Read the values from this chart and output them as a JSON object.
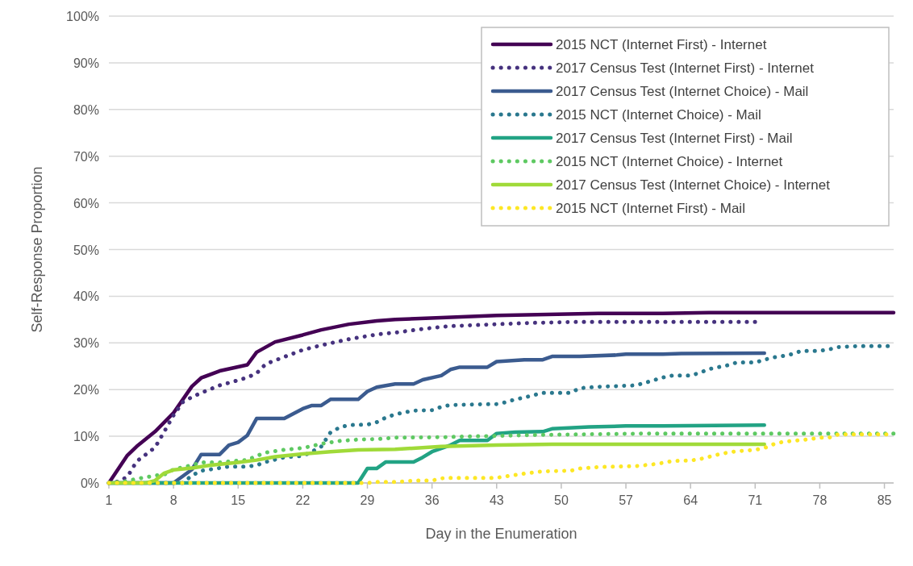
{
  "chart_data": {
    "type": "line",
    "xlabel": "Day in the Enumeration",
    "ylabel": "Self-Response Proportion",
    "xlim": [
      1,
      86
    ],
    "xticks": [
      1,
      8,
      15,
      22,
      29,
      36,
      43,
      50,
      57,
      64,
      71,
      78,
      85
    ],
    "ylim": [
      0,
      100
    ],
    "yticks": [
      {
        "value": 0,
        "label": "0%"
      },
      {
        "value": 10,
        "label": "10%"
      },
      {
        "value": 20,
        "label": "20%"
      },
      {
        "value": 30,
        "label": "30%"
      },
      {
        "value": 40,
        "label": "40%"
      },
      {
        "value": 50,
        "label": "50%"
      },
      {
        "value": 60,
        "label": "60%"
      },
      {
        "value": 70,
        "label": "70%"
      },
      {
        "value": 80,
        "label": "80%"
      },
      {
        "value": 90,
        "label": "90%"
      },
      {
        "value": 100,
        "label": "100%"
      }
    ],
    "grid": "y",
    "legend": "top right",
    "series": [
      {
        "name": "2015 NCT (Internet First) - Internet",
        "color": "#440154",
        "line_style": "solid",
        "x": [
          1,
          3,
          4,
          6,
          8,
          10,
          11,
          13,
          16,
          17,
          19,
          22,
          24,
          27,
          30,
          32,
          37,
          43,
          54,
          61,
          66,
          86
        ],
        "values": [
          0,
          5.9,
          7.8,
          11,
          15,
          20.7,
          22.5,
          24,
          25.3,
          28,
          30.2,
          31.7,
          32.8,
          34,
          34.7,
          35,
          35.4,
          35.9,
          36.3,
          36.3,
          36.5,
          36.5
        ]
      },
      {
        "name": "2017 Census Test (Internet First) - Internet",
        "color": "#46327e",
        "line_style": "dotted",
        "x": [
          1,
          2,
          3,
          4,
          5,
          6,
          7,
          8,
          9,
          10,
          11,
          13,
          15,
          16,
          17,
          18,
          20,
          22,
          24,
          27,
          30,
          32,
          35,
          38,
          43,
          47,
          52,
          60,
          71
        ],
        "values": [
          0,
          0.3,
          1.3,
          4.6,
          6.1,
          7.6,
          11,
          14.5,
          17.3,
          18.4,
          19.3,
          20.9,
          22,
          22.6,
          23.5,
          25.5,
          27,
          28.5,
          29.5,
          30.8,
          31.8,
          32.2,
          33,
          33.6,
          34,
          34.3,
          34.5,
          34.5,
          34.5
        ]
      },
      {
        "name": "2017 Census Test (Internet Choice) - Mail",
        "color": "#3b5b8f",
        "line_style": "solid",
        "x": [
          1,
          8,
          10,
          11,
          13,
          14,
          15,
          16,
          17,
          20,
          22,
          23,
          24,
          25,
          28,
          29,
          30,
          32,
          34,
          35,
          37,
          38,
          39,
          42,
          43,
          46,
          48,
          49,
          52,
          56,
          57,
          61,
          63,
          72
        ],
        "values": [
          0,
          0,
          2.9,
          6.1,
          6.1,
          8.1,
          8.7,
          10.2,
          13.8,
          13.8,
          15.9,
          16.6,
          16.6,
          17.9,
          17.9,
          19.6,
          20.5,
          21.2,
          21.2,
          22.1,
          23,
          24.3,
          24.8,
          24.8,
          26,
          26.4,
          26.4,
          27.1,
          27.1,
          27.4,
          27.6,
          27.6,
          27.7,
          27.8
        ]
      },
      {
        "name": "2015 NCT (Internet Choice) - Mail",
        "color": "#2a788e",
        "line_style": "dotted",
        "x": [
          1,
          9,
          10,
          11,
          12,
          14,
          16,
          17,
          18,
          20,
          22,
          23,
          24,
          25,
          26,
          27,
          29,
          30,
          31,
          32,
          34,
          36,
          37,
          38,
          43,
          44,
          45,
          46,
          47,
          48,
          51,
          52,
          54,
          58,
          59,
          60,
          61,
          62,
          64,
          65,
          66,
          67,
          68,
          69,
          71,
          72,
          73,
          74,
          75,
          76,
          78,
          79,
          80,
          82,
          86
        ],
        "values": [
          0,
          0,
          1.6,
          2.6,
          2.9,
          3.5,
          3.5,
          3.8,
          4.5,
          5.5,
          5.8,
          6.7,
          7.8,
          10.8,
          11.9,
          12.4,
          12.5,
          13,
          14,
          14.7,
          15.5,
          15.6,
          16.3,
          16.7,
          16.9,
          17.3,
          17.9,
          18.3,
          18.8,
          19.3,
          19.3,
          20.3,
          20.6,
          20.9,
          21.4,
          22,
          22.6,
          23,
          23,
          23.6,
          24.4,
          24.8,
          25.2,
          25.8,
          25.8,
          26.4,
          26.9,
          27.2,
          27.6,
          28.3,
          28.3,
          28.6,
          29.1,
          29.3,
          29.3
        ]
      },
      {
        "name": "2017 Census Test (Internet First) - Mail",
        "color": "#22a384",
        "line_style": "solid",
        "x": [
          1,
          28,
          29,
          30,
          31,
          32,
          34,
          35,
          36,
          38,
          39,
          42,
          43,
          45,
          48,
          49,
          53,
          57,
          61,
          72
        ],
        "values": [
          0,
          0,
          3.1,
          3.1,
          4.5,
          4.5,
          4.5,
          5.5,
          6.7,
          8.1,
          9.1,
          9.1,
          10.6,
          10.9,
          11,
          11.6,
          12,
          12.2,
          12.2,
          12.4
        ]
      },
      {
        "name": "2015 NCT (Internet Choice) - Internet",
        "color": "#5ec962",
        "line_style": "dotted",
        "x": [
          1,
          3,
          4,
          5,
          6,
          7,
          8,
          10,
          11,
          13,
          15,
          16,
          17,
          18,
          20,
          22,
          23,
          24,
          26,
          28,
          30,
          32,
          37,
          41,
          48,
          60,
          86
        ],
        "values": [
          0,
          0.4,
          0.9,
          1.2,
          1.6,
          1.8,
          2.9,
          3.8,
          4.4,
          4.4,
          4.8,
          4.9,
          5.8,
          6.5,
          7.1,
          7.5,
          7.9,
          8.4,
          9,
          9.3,
          9.4,
          9.7,
          9.8,
          10,
          10.3,
          10.6,
          10.6
        ]
      },
      {
        "name": "2017 Census Test (Internet Choice) - Internet",
        "color": "#a0da39",
        "line_style": "solid",
        "x": [
          1,
          5,
          6,
          7,
          8,
          10,
          12,
          15,
          17,
          19,
          22,
          25,
          28,
          32,
          37,
          43,
          49,
          61,
          72
        ],
        "values": [
          0,
          0,
          0.5,
          2.1,
          2.8,
          3.2,
          3.8,
          4.4,
          4.9,
          5.6,
          6.2,
          6.7,
          7.1,
          7.2,
          7.8,
          8.1,
          8.3,
          8.3,
          8.3
        ]
      },
      {
        "name": "2015 NCT (Internet First) - Mail",
        "color": "#fde725",
        "line_style": "dotted",
        "x": [
          1,
          29,
          30,
          32,
          34,
          36,
          37,
          38,
          43,
          44,
          45,
          46,
          48,
          51,
          52,
          54,
          56,
          58,
          60,
          61,
          62,
          64,
          65,
          66,
          67,
          68,
          69,
          71,
          72,
          73,
          74,
          76,
          77,
          78,
          79,
          80,
          86
        ],
        "values": [
          0,
          0,
          0.2,
          0.2,
          0.5,
          0.5,
          1,
          1.1,
          1.1,
          1.4,
          1.7,
          2,
          2.5,
          2.6,
          3.1,
          3.4,
          3.5,
          3.6,
          4,
          4.3,
          4.7,
          4.8,
          5.1,
          5.6,
          6.1,
          6.5,
          6.8,
          7.1,
          7.5,
          8.3,
          8.8,
          9.2,
          9.4,
          9.7,
          9.7,
          10.4,
          10.4
        ]
      }
    ]
  }
}
